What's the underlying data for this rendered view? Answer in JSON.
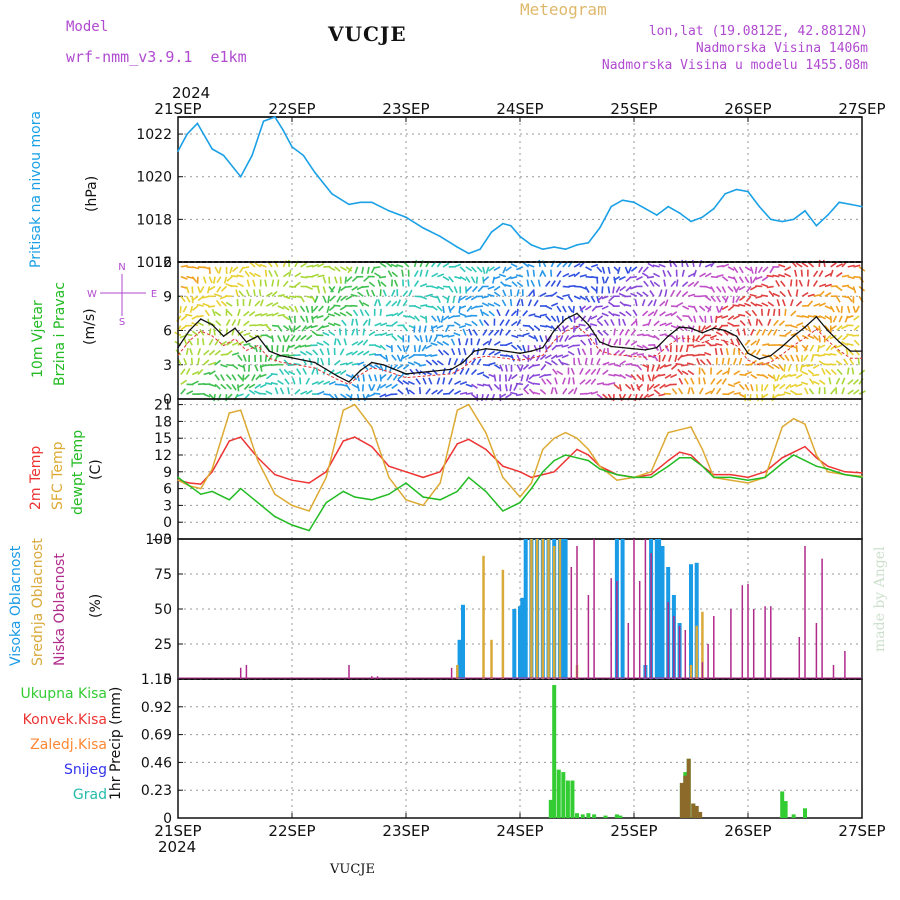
{
  "header": {
    "model_label": "Model",
    "model_name": "wrf-nmm_v3.9.1  e1km",
    "station": "VUCJE",
    "product": "Meteogram",
    "coords": "lon,lat (19.0812E, 42.8812N)",
    "elevation": "Nadmorska Visina 1406m",
    "model_elevation": "Nadmorska Visina u modelu 1455.08m",
    "year": "2024",
    "footer_station": "VUCJE",
    "credit": "made by Angel"
  },
  "colors": {
    "pressure": "#1aa0e6",
    "wind_label": "#22bb22",
    "temp2m": "#ee3333",
    "sfc": "#ddaa33",
    "dew": "#22bb22",
    "cloud_high": "#1a9be6",
    "cloud_mid": "#d9a93a",
    "cloud_low": "#b02a8a",
    "precip_total": "#33cc33",
    "precip_conv": "#ee3333",
    "precip_frozen": "#ff8833",
    "precip_snow": "#3333ee",
    "precip_grad": "#22bbaa",
    "legend_purple": "#b04ad0"
  },
  "chart_data": [
    {
      "type": "line",
      "panel": "pressure",
      "title": "",
      "ylabel_lines": [
        "Pritisak na nivou mora",
        "(hPa)"
      ],
      "x_ticks": [
        "21SEP",
        "22SEP",
        "23SEP",
        "24SEP",
        "25SEP",
        "26SEP",
        "27SEP"
      ],
      "x_range_days": [
        21,
        27
      ],
      "y_ticks": [
        "1016",
        "1018",
        "1020",
        "1022"
      ],
      "ylim": [
        1016,
        1022.8
      ],
      "x": [
        21.0,
        21.08,
        21.17,
        21.3,
        21.4,
        21.55,
        21.65,
        21.75,
        21.85,
        21.92,
        22.0,
        22.1,
        22.2,
        22.35,
        22.5,
        22.6,
        22.7,
        22.85,
        23.0,
        23.15,
        23.3,
        23.45,
        23.55,
        23.65,
        23.75,
        23.85,
        23.92,
        24.0,
        24.1,
        24.2,
        24.3,
        24.4,
        24.5,
        24.6,
        24.7,
        24.8,
        24.9,
        25.0,
        25.1,
        25.2,
        25.3,
        25.4,
        25.5,
        25.6,
        25.7,
        25.8,
        25.9,
        26.0,
        26.1,
        26.2,
        26.3,
        26.4,
        26.5,
        26.6,
        26.7,
        26.8,
        26.9,
        27.0
      ],
      "values": [
        1021.2,
        1022.0,
        1022.5,
        1021.3,
        1021.0,
        1020.0,
        1021.0,
        1022.6,
        1022.8,
        1022.2,
        1021.4,
        1021.0,
        1020.2,
        1019.2,
        1018.7,
        1018.8,
        1018.8,
        1018.4,
        1018.1,
        1017.6,
        1017.2,
        1016.7,
        1016.4,
        1016.6,
        1017.4,
        1017.8,
        1017.7,
        1017.2,
        1016.8,
        1016.6,
        1016.7,
        1016.6,
        1016.8,
        1016.9,
        1017.6,
        1018.6,
        1018.9,
        1018.8,
        1018.5,
        1018.2,
        1018.6,
        1018.3,
        1017.9,
        1018.1,
        1018.5,
        1019.2,
        1019.4,
        1019.3,
        1018.6,
        1018.0,
        1017.9,
        1018.0,
        1018.4,
        1017.7,
        1018.2,
        1018.8,
        1018.7,
        1018.6
      ]
    },
    {
      "type": "line",
      "panel": "wind",
      "title": "",
      "ylabel_lines": [
        "10m Vjetar",
        "Brzina i Pravac",
        "(m/s)"
      ],
      "compass": [
        "N",
        "W",
        "E",
        "S"
      ],
      "x_range_days": [
        21,
        27
      ],
      "y_ticks": [
        "0",
        "3",
        "6",
        "9",
        "12"
      ],
      "ylim": [
        0,
        12
      ],
      "x": [
        21.0,
        21.1,
        21.2,
        21.3,
        21.4,
        21.5,
        21.6,
        21.7,
        21.8,
        21.9,
        22.0,
        22.2,
        22.4,
        22.5,
        22.6,
        22.7,
        22.8,
        23.0,
        23.2,
        23.4,
        23.5,
        23.6,
        23.7,
        23.8,
        24.0,
        24.1,
        24.2,
        24.3,
        24.4,
        24.5,
        24.6,
        24.7,
        24.8,
        24.9,
        25.0,
        25.1,
        25.2,
        25.3,
        25.4,
        25.5,
        25.6,
        25.7,
        25.8,
        25.9,
        26.0,
        26.1,
        26.2,
        26.3,
        26.4,
        26.5,
        26.6,
        26.7,
        26.8,
        26.9,
        27.0
      ],
      "values": [
        4.5,
        6.0,
        7.0,
        6.5,
        5.5,
        6.2,
        5.0,
        5.5,
        4.2,
        3.8,
        3.6,
        3.2,
        2.0,
        1.5,
        2.5,
        3.2,
        3.0,
        2.2,
        2.4,
        2.6,
        3.2,
        4.2,
        4.4,
        4.3,
        4.0,
        4.2,
        4.5,
        6.0,
        7.0,
        7.5,
        6.5,
        5.0,
        4.6,
        4.5,
        4.4,
        4.3,
        4.5,
        5.5,
        6.3,
        6.2,
        5.8,
        6.2,
        6.0,
        5.5,
        4.0,
        3.5,
        3.8,
        4.6,
        5.5,
        6.3,
        7.2,
        6.0,
        5.0,
        4.2,
        4.2
      ]
    },
    {
      "type": "line",
      "panel": "temperature",
      "title": "",
      "ylabel_lines": [
        "2m Temp",
        "SFC Temp",
        "dewpt Temp",
        "(C)"
      ],
      "x_range_days": [
        21,
        27
      ],
      "y_ticks": [
        "−3",
        "0",
        "3",
        "6",
        "9",
        "12",
        "15",
        "18",
        "21"
      ],
      "ylim": [
        -3,
        22
      ],
      "x": [
        21.0,
        21.1,
        21.2,
        21.3,
        21.45,
        21.55,
        21.7,
        21.85,
        22.0,
        22.15,
        22.3,
        22.45,
        22.55,
        22.7,
        22.85,
        23.0,
        23.15,
        23.3,
        23.45,
        23.55,
        23.7,
        23.85,
        24.0,
        24.1,
        24.2,
        24.3,
        24.4,
        24.5,
        24.6,
        24.7,
        24.85,
        25.0,
        25.15,
        25.3,
        25.4,
        25.5,
        25.6,
        25.7,
        25.85,
        26.0,
        26.15,
        26.3,
        26.4,
        26.5,
        26.6,
        26.7,
        26.85,
        27.0
      ],
      "series": [
        {
          "name": "2m Temp",
          "color": "#ee3333",
          "values": [
            7.5,
            7.0,
            6.8,
            9.0,
            14.5,
            15.2,
            11.5,
            8.5,
            7.5,
            7.0,
            9.0,
            14.5,
            15.2,
            13.5,
            10.0,
            9.0,
            8.0,
            9.0,
            14.0,
            14.8,
            13.0,
            10.0,
            9.0,
            8.0,
            8.5,
            9.0,
            11.0,
            13.0,
            12.0,
            10.0,
            8.5,
            8.0,
            8.5,
            11.0,
            12.5,
            12.0,
            10.0,
            8.5,
            8.5,
            8.0,
            9.0,
            11.5,
            12.5,
            13.5,
            11.5,
            10.0,
            9.0,
            8.8
          ]
        },
        {
          "name": "SFC Temp",
          "color": "#ddaa33",
          "values": [
            7.5,
            6.5,
            6.0,
            9.5,
            19.5,
            20.0,
            11.0,
            5.0,
            3.0,
            2.0,
            8.0,
            20.0,
            21.0,
            17.0,
            8.0,
            4.0,
            3.0,
            7.0,
            20.0,
            21.0,
            16.0,
            8.0,
            4.5,
            7.0,
            13.0,
            15.0,
            16.0,
            15.0,
            13.0,
            10.0,
            7.5,
            8.0,
            9.0,
            16.0,
            16.5,
            17.0,
            13.0,
            8.0,
            7.5,
            7.0,
            8.0,
            17.0,
            18.5,
            17.5,
            12.0,
            9.0,
            8.5,
            8.2
          ]
        },
        {
          "name": "dewpt Temp",
          "color": "#22bb22",
          "values": [
            8.0,
            6.5,
            5.0,
            5.5,
            4.0,
            6.0,
            3.5,
            1.0,
            -0.5,
            -1.5,
            3.5,
            5.5,
            4.5,
            4.0,
            5.0,
            7.0,
            4.5,
            4.0,
            5.5,
            8.0,
            5.5,
            2.0,
            3.5,
            6.0,
            9.0,
            11.0,
            12.0,
            11.5,
            11.0,
            9.5,
            8.5,
            8.0,
            8.0,
            10.0,
            11.5,
            11.5,
            10.0,
            8.0,
            8.0,
            7.5,
            8.0,
            10.5,
            12.0,
            11.0,
            10.0,
            9.5,
            8.5,
            8.0
          ]
        }
      ]
    },
    {
      "type": "bar",
      "panel": "clouds",
      "title": "",
      "ylabel_lines": [
        "Visoka Oblacnost",
        "Srednja Oblacnost",
        "Niska Oblacnost",
        "(%)"
      ],
      "x_range_days": [
        21,
        27
      ],
      "y_ticks": [
        "0",
        "25",
        "50",
        "75",
        "100"
      ],
      "ylim": [
        0,
        100
      ],
      "series": [
        {
          "name": "Visoka Oblacnost",
          "color": "#1a9be6",
          "x": [
            23.47,
            23.5,
            23.95,
            24.0,
            24.02,
            24.05,
            24.1,
            24.15,
            24.2,
            24.25,
            24.3,
            24.35,
            24.38,
            24.4,
            24.85,
            24.9,
            25.1,
            25.15,
            25.2,
            25.22,
            25.25,
            25.3,
            25.35,
            25.4,
            25.5,
            25.55
          ],
          "values": [
            28,
            53,
            50,
            52,
            58,
            100,
            100,
            100,
            100,
            100,
            100,
            100,
            100,
            100,
            100,
            100,
            10,
            100,
            100,
            100,
            95,
            80,
            60,
            40,
            82,
            83
          ]
        },
        {
          "name": "Srednja Oblacnost",
          "color": "#d9a93a",
          "x": [
            23.45,
            23.68,
            23.75,
            23.85,
            24.1,
            24.15,
            24.2,
            24.25,
            24.3,
            24.35,
            24.5,
            25.5,
            25.55,
            25.6
          ],
          "values": [
            10,
            88,
            28,
            78,
            100,
            100,
            100,
            100,
            95,
            100,
            10,
            10,
            38,
            48
          ]
        },
        {
          "name": "Niska Oblacnost",
          "color": "#b02a8a",
          "x": [
            21.55,
            21.6,
            22.5,
            22.7,
            22.75,
            23.4,
            24.45,
            24.5,
            24.6,
            24.65,
            24.8,
            24.85,
            24.95,
            25.0,
            25.05,
            25.1,
            25.15,
            25.3,
            25.35,
            25.4,
            25.45,
            25.6,
            25.65,
            25.7,
            25.85,
            25.95,
            26.0,
            26.05,
            26.15,
            26.2,
            26.45,
            26.5,
            26.6,
            26.65,
            26.75,
            26.85
          ],
          "values": [
            8,
            10,
            10,
            2,
            2,
            8,
            80,
            95,
            60,
            100,
            72,
            70,
            40,
            100,
            70,
            100,
            90,
            55,
            45,
            38,
            35,
            12,
            25,
            45,
            50,
            67,
            68,
            50,
            52,
            52,
            30,
            95,
            40,
            86,
            10,
            20
          ]
        }
      ]
    },
    {
      "type": "bar",
      "panel": "precipitation",
      "title": "",
      "ylabel_lines": [
        "1hr Precip (mm)"
      ],
      "legend": [
        "Ukupna Kisa",
        "Konvek.Kisa",
        "Zaledj.Kisa",
        "Snijeg",
        "Grad"
      ],
      "x_ticks": [
        "21SEP",
        "22SEP",
        "23SEP",
        "24SEP",
        "25SEP",
        "26SEP",
        "27SEP"
      ],
      "x_range_days": [
        21,
        27
      ],
      "y_ticks": [
        "0",
        "0.23",
        "0.46",
        "0.69",
        "0.92",
        "1.15"
      ],
      "ylim": [
        0,
        1.15
      ],
      "series": [
        {
          "name": "Ukupna Kisa",
          "color": "#33cc33",
          "x": [
            24.27,
            24.3,
            24.34,
            24.38,
            24.42,
            24.46,
            24.5,
            24.55,
            24.6,
            24.65,
            24.75,
            24.85,
            24.88,
            25.42,
            25.45,
            25.48,
            25.52,
            26.3,
            26.33,
            26.4,
            26.5
          ],
          "values": [
            0.15,
            1.1,
            0.4,
            0.38,
            0.31,
            0.31,
            0.04,
            0.03,
            0.04,
            0.03,
            0.02,
            0.03,
            0.02,
            0.29,
            0.38,
            0.49,
            0.12,
            0.22,
            0.14,
            0.03,
            0.08
          ]
        },
        {
          "name": "Konvek.Kisa",
          "color": "#8b6a2a",
          "x": [
            25.42,
            25.45,
            25.48,
            25.52,
            25.55,
            25.58
          ],
          "values": [
            0.29,
            0.35,
            0.49,
            0.12,
            0.1,
            0.05
          ]
        }
      ]
    }
  ]
}
